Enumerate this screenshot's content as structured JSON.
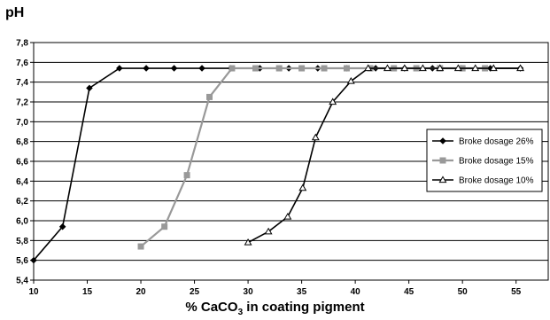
{
  "chart_data": {
    "type": "line",
    "ylabel": "pH",
    "xlabel_parts": [
      "% CaCO",
      "3",
      " in coating pigment"
    ],
    "xlim": [
      10,
      58
    ],
    "ylim": [
      5.4,
      7.8
    ],
    "x_ticks": [
      10,
      15,
      20,
      25,
      30,
      35,
      40,
      45,
      50,
      55
    ],
    "y_ticks": [
      "5,4",
      "5,6",
      "5,8",
      "6,0",
      "6,2",
      "6,4",
      "6,6",
      "6,8",
      "7,0",
      "7,2",
      "7,4",
      "7,6",
      "7,8"
    ],
    "y_tick_values": [
      5.4,
      5.6,
      5.8,
      6.0,
      6.2,
      6.4,
      6.6,
      6.8,
      7.0,
      7.2,
      7.4,
      7.6,
      7.8
    ],
    "grid": "horizontal",
    "legend_position": "right",
    "series": [
      {
        "name": "Broke dosage 26%",
        "color": "#000000",
        "marker": "diamond",
        "x": [
          10.0,
          12.7,
          15.2,
          18.0,
          20.5,
          23.1,
          25.7,
          28.4,
          31.1,
          33.8,
          36.5,
          39.2,
          41.9,
          44.6,
          47.2,
          49.9,
          52.6,
          55.4
        ],
        "y": [
          5.6,
          5.94,
          7.34,
          7.54,
          7.54,
          7.54,
          7.54,
          7.54,
          7.54,
          7.54,
          7.54,
          7.54,
          7.54,
          7.54,
          7.54,
          7.54,
          7.54,
          7.54
        ]
      },
      {
        "name": "Broke dosage 15%",
        "color": "#999999",
        "marker": "square",
        "x": [
          20.0,
          22.2,
          24.3,
          26.4,
          28.5,
          30.7,
          32.9,
          35.0,
          37.1,
          39.2,
          41.4,
          43.6,
          45.7,
          47.9,
          50.0,
          52.1
        ],
        "y": [
          5.74,
          5.94,
          6.46,
          7.25,
          7.54,
          7.54,
          7.54,
          7.54,
          7.54,
          7.54,
          7.54,
          7.54,
          7.54,
          7.54,
          7.54,
          7.54
        ]
      },
      {
        "name": "Broke dosage 10%",
        "color": "#000000",
        "marker": "triangle",
        "x": [
          30.0,
          31.9,
          33.7,
          35.1,
          36.3,
          37.9,
          39.6,
          41.2,
          43.0,
          44.6,
          46.3,
          47.9,
          49.6,
          51.2,
          52.9,
          55.4
        ],
        "y": [
          5.78,
          5.89,
          6.04,
          6.33,
          6.84,
          7.2,
          7.41,
          7.54,
          7.54,
          7.54,
          7.54,
          7.54,
          7.54,
          7.54,
          7.54,
          7.54
        ]
      }
    ]
  }
}
